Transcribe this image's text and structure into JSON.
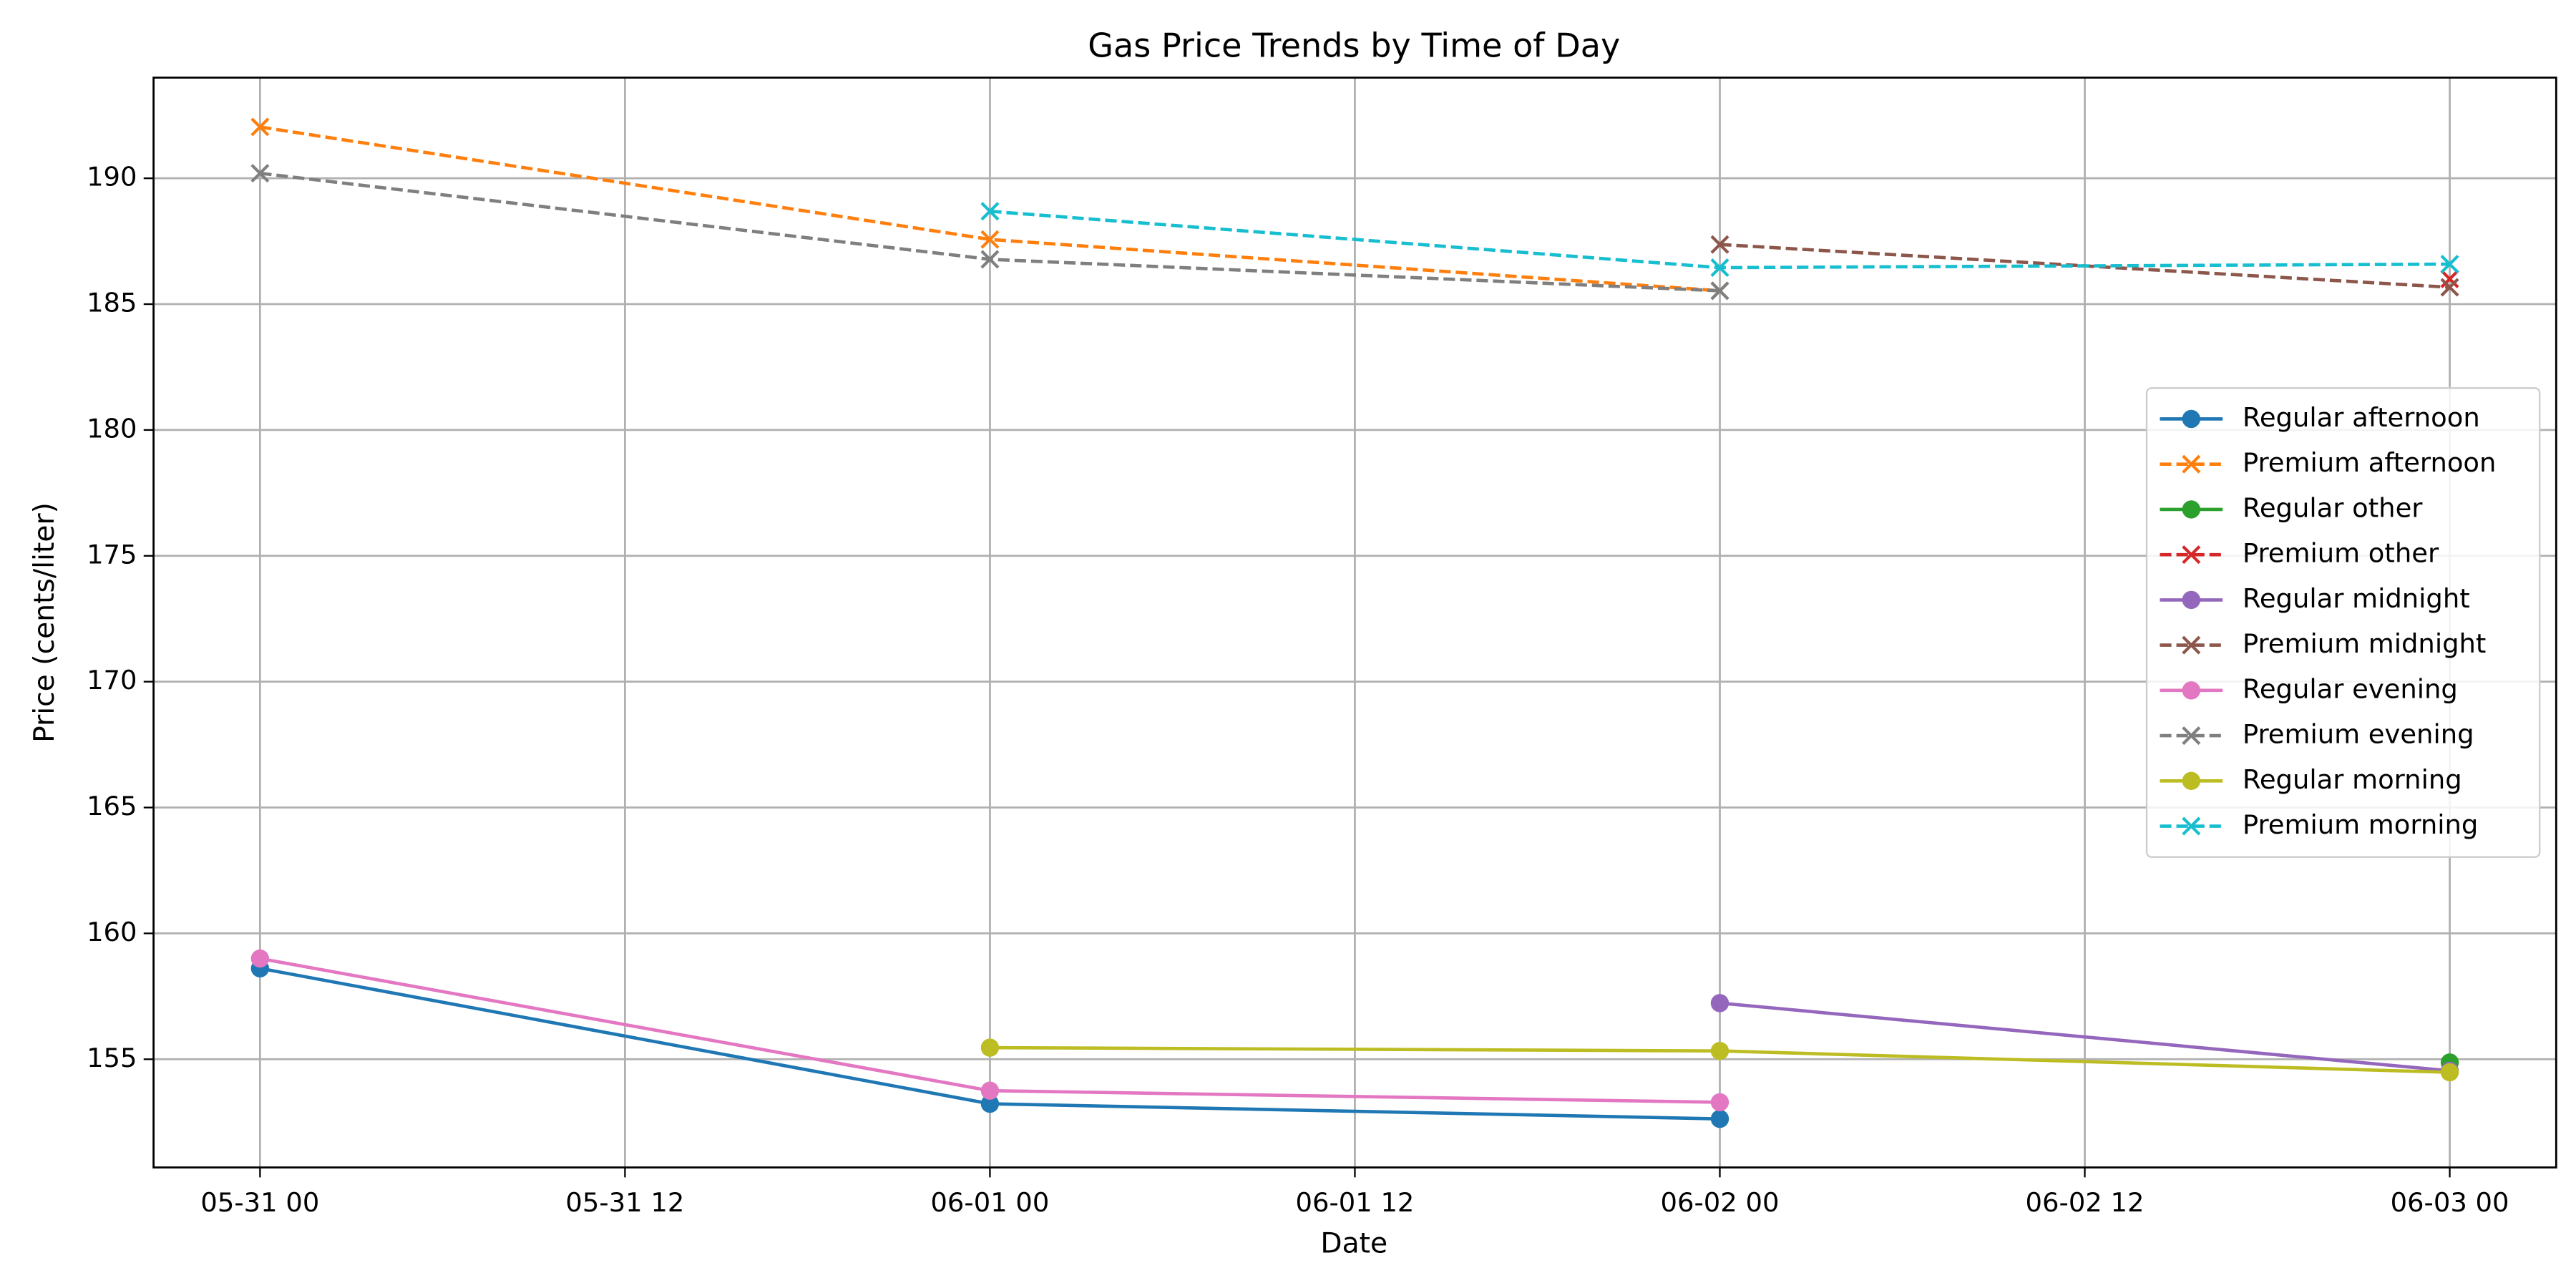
{
  "chart_data": {
    "type": "line",
    "title": "Gas Price Trends by Time of Day",
    "xlabel": "Date",
    "ylabel": "Price (cents/liter)",
    "x": [
      "05-31 00",
      "06-01 00",
      "06-02 00",
      "06-03 00"
    ],
    "xlim": [
      "05-30 20:30",
      "06-03 03:30"
    ],
    "xticks": [
      "05-31 00",
      "05-31 12",
      "06-01 00",
      "06-01 12",
      "06-02 00",
      "06-02 12",
      "06-03 00"
    ],
    "ylim": [
      150.7,
      194.0
    ],
    "yticks": [
      155,
      160,
      165,
      170,
      175,
      180,
      185,
      190
    ],
    "grid": true,
    "legend_loc": "center right",
    "series": [
      {
        "name": "Regular afternoon",
        "color": "#1f77b4",
        "marker": "o",
        "linestyle": "-",
        "values": [
          158.61,
          153.23,
          152.63,
          null
        ]
      },
      {
        "name": "Premium afternoon",
        "color": "#ff7f0e",
        "marker": "x",
        "linestyle": "--",
        "values": [
          192.04,
          187.57,
          185.53,
          null
        ]
      },
      {
        "name": "Regular other",
        "color": "#2ca02c",
        "marker": "o",
        "linestyle": "-",
        "values": [
          null,
          null,
          null,
          154.87
        ]
      },
      {
        "name": "Premium other",
        "color": "#d62728",
        "marker": "x",
        "linestyle": "--",
        "values": [
          null,
          null,
          null,
          186.0
        ]
      },
      {
        "name": "Regular midnight",
        "color": "#9467bd",
        "marker": "o",
        "linestyle": "-",
        "values": [
          null,
          null,
          157.23,
          154.54
        ]
      },
      {
        "name": "Premium midnight",
        "color": "#8c564b",
        "marker": "x",
        "linestyle": "--",
        "values": [
          null,
          null,
          187.37,
          185.67
        ]
      },
      {
        "name": "Regular evening",
        "color": "#e377c2",
        "marker": "o",
        "linestyle": "-",
        "values": [
          159.0,
          153.75,
          153.29,
          null
        ]
      },
      {
        "name": "Premium evening",
        "color": "#7f7f7f",
        "marker": "x",
        "linestyle": "--",
        "values": [
          190.2,
          186.78,
          185.53,
          null
        ]
      },
      {
        "name": "Regular morning",
        "color": "#bcbd22",
        "marker": "o",
        "linestyle": "-",
        "values": [
          null,
          155.46,
          155.33,
          154.48
        ]
      },
      {
        "name": "Premium morning",
        "color": "#17becf",
        "marker": "x",
        "linestyle": "--",
        "values": [
          null,
          188.69,
          186.45,
          186.59
        ]
      }
    ]
  }
}
